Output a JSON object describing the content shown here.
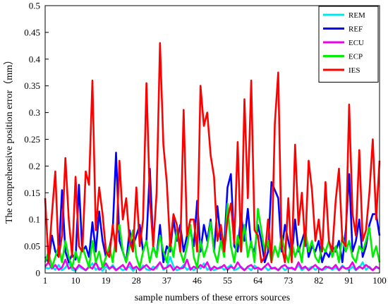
{
  "chart_data": {
    "type": "line",
    "title": "",
    "xlabel": "sample numbers of these errors sources",
    "ylabel": "The comprehensive position error（mm）",
    "xlim": [
      1,
      100
    ],
    "ylim": [
      0,
      0.5
    ],
    "xticks": [
      1,
      10,
      19,
      28,
      37,
      46,
      55,
      64,
      73,
      82,
      91,
      100
    ],
    "yticks": [
      0,
      0.05,
      0.1,
      0.15,
      0.2,
      0.25,
      0.3,
      0.35,
      0.4,
      0.45,
      0.5
    ],
    "ytick_labels": [
      "0",
      "0.05",
      "0.1",
      "0.15",
      "0.2",
      "0.25",
      "0.3",
      "0.35",
      "0.4",
      "0.45",
      "0.5"
    ],
    "grid": false,
    "legend_position": "top-right",
    "x": [
      1,
      2,
      3,
      4,
      5,
      6,
      7,
      8,
      9,
      10,
      11,
      12,
      13,
      14,
      15,
      16,
      17,
      18,
      19,
      20,
      21,
      22,
      23,
      24,
      25,
      26,
      27,
      28,
      29,
      30,
      31,
      32,
      33,
      34,
      35,
      36,
      37,
      38,
      39,
      40,
      41,
      42,
      43,
      44,
      45,
      46,
      47,
      48,
      49,
      50,
      51,
      52,
      53,
      54,
      55,
      56,
      57,
      58,
      59,
      60,
      61,
      62,
      63,
      64,
      65,
      66,
      67,
      68,
      69,
      70,
      71,
      72,
      73,
      74,
      75,
      76,
      77,
      78,
      79,
      80,
      81,
      82,
      83,
      84,
      85,
      86,
      87,
      88,
      89,
      90,
      91,
      92,
      93,
      94,
      95,
      96,
      97,
      98,
      99,
      100
    ],
    "series": [
      {
        "name": "REM",
        "color": "#00e5ee",
        "values": [
          0.01,
          0.008,
          0.012,
          0.006,
          0.015,
          0.005,
          0.01,
          0.02,
          0.006,
          0.004,
          0.012,
          0.008,
          0.005,
          0.01,
          0.018,
          0.006,
          0.01,
          0.004,
          0.012,
          0.007,
          0.015,
          0.006,
          0.01,
          0.005,
          0.008,
          0.012,
          0.004,
          0.01,
          0.006,
          0.014,
          0.007,
          0.005,
          0.012,
          0.008,
          0.02,
          0.006,
          0.01,
          0.03,
          0.012,
          0.005,
          0.008,
          0.015,
          0.006,
          0.01,
          0.005,
          0.012,
          0.008,
          0.018,
          0.006,
          0.01,
          0.005,
          0.008,
          0.012,
          0.006,
          0.01,
          0.015,
          0.005,
          0.008,
          0.012,
          0.006,
          0.01,
          0.005,
          0.014,
          0.008,
          0.006,
          0.012,
          0.005,
          0.01,
          0.008,
          0.006,
          0.012,
          0.005,
          0.01,
          0.008,
          0.006,
          0.015,
          0.005,
          0.01,
          0.008,
          0.012,
          0.006,
          0.01,
          0.005,
          0.008,
          0.012,
          0.006,
          0.01,
          0.005,
          0.014,
          0.008,
          0.006,
          0.012,
          0.005,
          0.01,
          0.02,
          0.006,
          0.012,
          0.005,
          0.01,
          0.008
        ]
      },
      {
        "name": "REF",
        "color": "#0000ff",
        "values": [
          0.03,
          0.02,
          0.07,
          0.04,
          0.03,
          0.155,
          0.04,
          0.02,
          0.035,
          0.025,
          0.165,
          0.04,
          0.05,
          0.03,
          0.095,
          0.04,
          0.115,
          0.06,
          0.03,
          0.045,
          0.08,
          0.225,
          0.06,
          0.04,
          0.02,
          0.08,
          0.05,
          0.07,
          0.09,
          0.04,
          0.06,
          0.195,
          0.05,
          0.03,
          0.09,
          0.02,
          0.05,
          0.04,
          0.1,
          0.06,
          0.09,
          0.04,
          0.07,
          0.08,
          0.05,
          0.135,
          0.04,
          0.09,
          0.06,
          0.1,
          0.04,
          0.125,
          0.06,
          0.05,
          0.16,
          0.185,
          0.05,
          0.04,
          0.11,
          0.06,
          0.12,
          0.05,
          0.04,
          0.09,
          0.06,
          0.02,
          0.04,
          0.17,
          0.155,
          0.14,
          0.04,
          0.09,
          0.06,
          0.03,
          0.1,
          0.04,
          0.06,
          0.08,
          0.03,
          0.05,
          0.04,
          0.06,
          0.02,
          0.04,
          0.03,
          0.05,
          0.04,
          0.06,
          0.02,
          0.08,
          0.185,
          0.04,
          0.06,
          0.1,
          0.03,
          0.05,
          0.09,
          0.11,
          0.11,
          0.07
        ]
      },
      {
        "name": "ECU",
        "color": "#ee00ee",
        "values": [
          0.012,
          0.02,
          0.008,
          0.015,
          0.006,
          0.01,
          0.025,
          0.008,
          0.012,
          0.006,
          0.015,
          0.01,
          0.005,
          0.012,
          0.008,
          0.02,
          0.006,
          0.01,
          0.018,
          0.008,
          0.012,
          0.005,
          0.01,
          0.015,
          0.006,
          0.02,
          0.008,
          0.012,
          0.005,
          0.01,
          0.015,
          0.008,
          0.006,
          0.012,
          0.02,
          0.008,
          0.01,
          0.015,
          0.005,
          0.012,
          0.008,
          0.01,
          0.025,
          0.006,
          0.012,
          0.008,
          0.015,
          0.01,
          0.02,
          0.005,
          0.012,
          0.008,
          0.01,
          0.015,
          0.006,
          0.012,
          0.008,
          0.02,
          0.01,
          0.005,
          0.012,
          0.015,
          0.008,
          0.01,
          0.006,
          0.012,
          0.018,
          0.008,
          0.01,
          0.005,
          0.012,
          0.015,
          0.008,
          0.01,
          0.006,
          0.02,
          0.008,
          0.012,
          0.005,
          0.01,
          0.015,
          0.008,
          0.006,
          0.012,
          0.01,
          0.008,
          0.015,
          0.005,
          0.012,
          0.008,
          0.01,
          0.02,
          0.006,
          0.012,
          0.008,
          0.015,
          0.01,
          0.005,
          0.012,
          0.008
        ]
      },
      {
        "name": "ECP",
        "color": "#00ee00",
        "values": [
          0.02,
          0.04,
          0.01,
          0.03,
          0.05,
          0.02,
          0.06,
          0.03,
          0.01,
          0.04,
          0.02,
          0.05,
          0.03,
          0.01,
          0.06,
          0.02,
          0.04,
          0.01,
          0.03,
          0.05,
          0.02,
          0.07,
          0.09,
          0.04,
          0.02,
          0.05,
          0.08,
          0.03,
          0.01,
          0.04,
          0.06,
          0.02,
          0.05,
          0.03,
          0.07,
          0.04,
          0.02,
          0.06,
          0.03,
          0.08,
          0.04,
          0.02,
          0.05,
          0.09,
          0.03,
          0.01,
          0.06,
          0.03,
          0.05,
          0.095,
          0.04,
          0.02,
          0.06,
          0.03,
          0.13,
          0.05,
          0.02,
          0.07,
          0.04,
          0.09,
          0.03,
          0.06,
          0.02,
          0.12,
          0.08,
          0.04,
          0.06,
          0.02,
          0.05,
          0.03,
          0.07,
          0.04,
          0.02,
          0.06,
          0.03,
          0.05,
          0.02,
          0.08,
          0.04,
          0.06,
          0.03,
          0.02,
          0.05,
          0.04,
          0.06,
          0.03,
          0.05,
          0.02,
          0.07,
          0.04,
          0.06,
          0.03,
          0.02,
          0.05,
          0.04,
          0.06,
          0.085,
          0.03,
          0.05,
          0.02
        ]
      },
      {
        "name": "IES",
        "color": "#ff0000",
        "values": [
          0.14,
          0.02,
          0.11,
          0.19,
          0.03,
          0.07,
          0.215,
          0.1,
          0.03,
          0.18,
          0.05,
          0.04,
          0.19,
          0.165,
          0.36,
          0.08,
          0.16,
          0.11,
          0.04,
          0.03,
          0.09,
          0.04,
          0.21,
          0.1,
          0.14,
          0.06,
          0.04,
          0.16,
          0.05,
          0.1,
          0.355,
          0.14,
          0.05,
          0.15,
          0.43,
          0.24,
          0.17,
          0.05,
          0.11,
          0.09,
          0.04,
          0.305,
          0.07,
          0.1,
          0.1,
          0.04,
          0.35,
          0.275,
          0.3,
          0.22,
          0.18,
          0.06,
          0.09,
          0.04,
          0.1,
          0.13,
          0.055,
          0.245,
          0.04,
          0.325,
          0.14,
          0.36,
          0.08,
          0.07,
          0.02,
          0.03,
          0.1,
          0.02,
          0.28,
          0.375,
          0.05,
          0.02,
          0.14,
          0.02,
          0.24,
          0.09,
          0.15,
          0.05,
          0.21,
          0.155,
          0.06,
          0.1,
          0.04,
          0.17,
          0.06,
          0.04,
          0.135,
          0.195,
          0.06,
          0.05,
          0.315,
          0.11,
          0.07,
          0.23,
          0.06,
          0.08,
          0.15,
          0.25,
          0.1,
          0.21
        ]
      }
    ]
  }
}
